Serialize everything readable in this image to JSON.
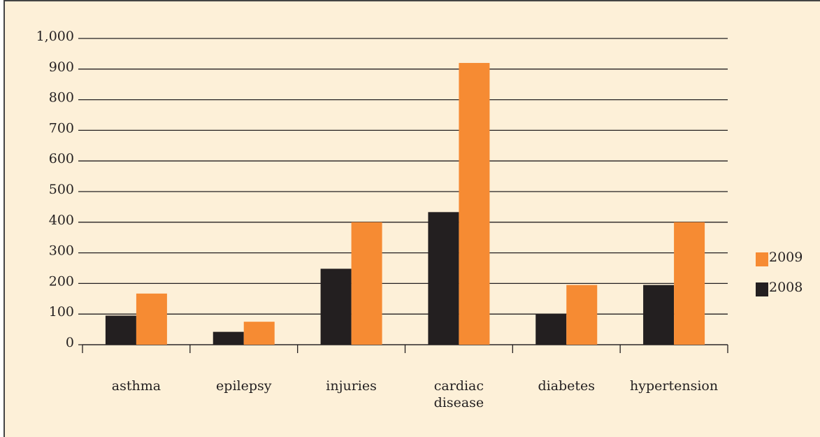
{
  "chart_data": {
    "type": "bar",
    "categories": [
      "asthma",
      "epilepsy",
      "injuries",
      "cardiac disease",
      "diabetes",
      "hypertension"
    ],
    "series": [
      {
        "name": "2008",
        "color": "#231f20",
        "values": [
          95,
          42,
          248,
          433,
          100,
          195
        ]
      },
      {
        "name": "2009",
        "color": "#f68b33",
        "values": [
          167,
          75,
          400,
          920,
          195,
          400
        ]
      }
    ],
    "ylim": [
      0,
      1000
    ],
    "yticks": [
      0,
      100,
      200,
      300,
      400,
      500,
      600,
      700,
      800,
      900,
      {
        "value": 1000,
        "label": "1,000"
      }
    ],
    "grid": true,
    "legend": "right"
  }
}
